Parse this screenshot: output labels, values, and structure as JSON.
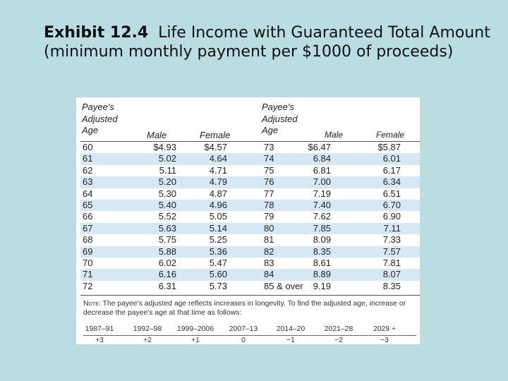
{
  "heading": {
    "exhibit": "Exhibit 12.4",
    "title": "Life Income with Guaranteed Total Amount (minimum monthly payment per $1000 of proceeds)"
  },
  "table": {
    "headers": {
      "age_line1": "Payee's",
      "age_line2": "Adjusted",
      "age_line3": "Age",
      "male": "Male",
      "female": "Female"
    },
    "rows": [
      {
        "age1": "60",
        "male1": "$4.93",
        "female1": "$4.57",
        "age2": "73",
        "male2": "$6.47",
        "female2": "$5.87"
      },
      {
        "age1": "61",
        "male1": "5.02",
        "female1": "4.64",
        "age2": "74",
        "male2": "6.84",
        "female2": "6.01"
      },
      {
        "age1": "62",
        "male1": "5.11",
        "female1": "4.71",
        "age2": "75",
        "male2": "6.81",
        "female2": "6.17"
      },
      {
        "age1": "63",
        "male1": "5.20",
        "female1": "4.79",
        "age2": "76",
        "male2": "7.00",
        "female2": "6.34"
      },
      {
        "age1": "64",
        "male1": "5.30",
        "female1": "4.87",
        "age2": "77",
        "male2": "7.19",
        "female2": "6.51"
      },
      {
        "age1": "65",
        "male1": "5.40",
        "female1": "4.96",
        "age2": "78",
        "male2": "7.40",
        "female2": "6.70"
      },
      {
        "age1": "66",
        "male1": "5.52",
        "female1": "5.05",
        "age2": "79",
        "male2": "7.62",
        "female2": "6.90"
      },
      {
        "age1": "67",
        "male1": "5.63",
        "female1": "5.14",
        "age2": "80",
        "male2": "7.85",
        "female2": "7.11"
      },
      {
        "age1": "68",
        "male1": "5.75",
        "female1": "5.25",
        "age2": "81",
        "male2": "8.09",
        "female2": "7.33"
      },
      {
        "age1": "69",
        "male1": "5.88",
        "female1": "5.36",
        "age2": "82",
        "male2": "8.35",
        "female2": "7.57"
      },
      {
        "age1": "70",
        "male1": "6.02",
        "female1": "5.47",
        "age2": "83",
        "male2": "8.61",
        "female2": "7.81"
      },
      {
        "age1": "71",
        "male1": "6.16",
        "female1": "5.60",
        "age2": "84",
        "male2": "8.89",
        "female2": "8.07"
      },
      {
        "age1": "72",
        "male1": "6.31",
        "female1": "5.73",
        "age2": "85 & over",
        "male2": "9.19",
        "female2": "8.35"
      }
    ]
  },
  "note": {
    "label": "Note:",
    "text": "The payee's adjusted age reflects increases in longevity. To find the adjusted age, increase or decrease the payee's age at that time as follows:"
  },
  "adjustments": {
    "periods": [
      "1987–91",
      "1992–98",
      "1999–2006",
      "2007–13",
      "2014–20",
      "2021–28",
      "2029 +"
    ],
    "values": [
      "+3",
      "+2",
      "+1",
      "0",
      "−1",
      "−2",
      "−3"
    ]
  }
}
